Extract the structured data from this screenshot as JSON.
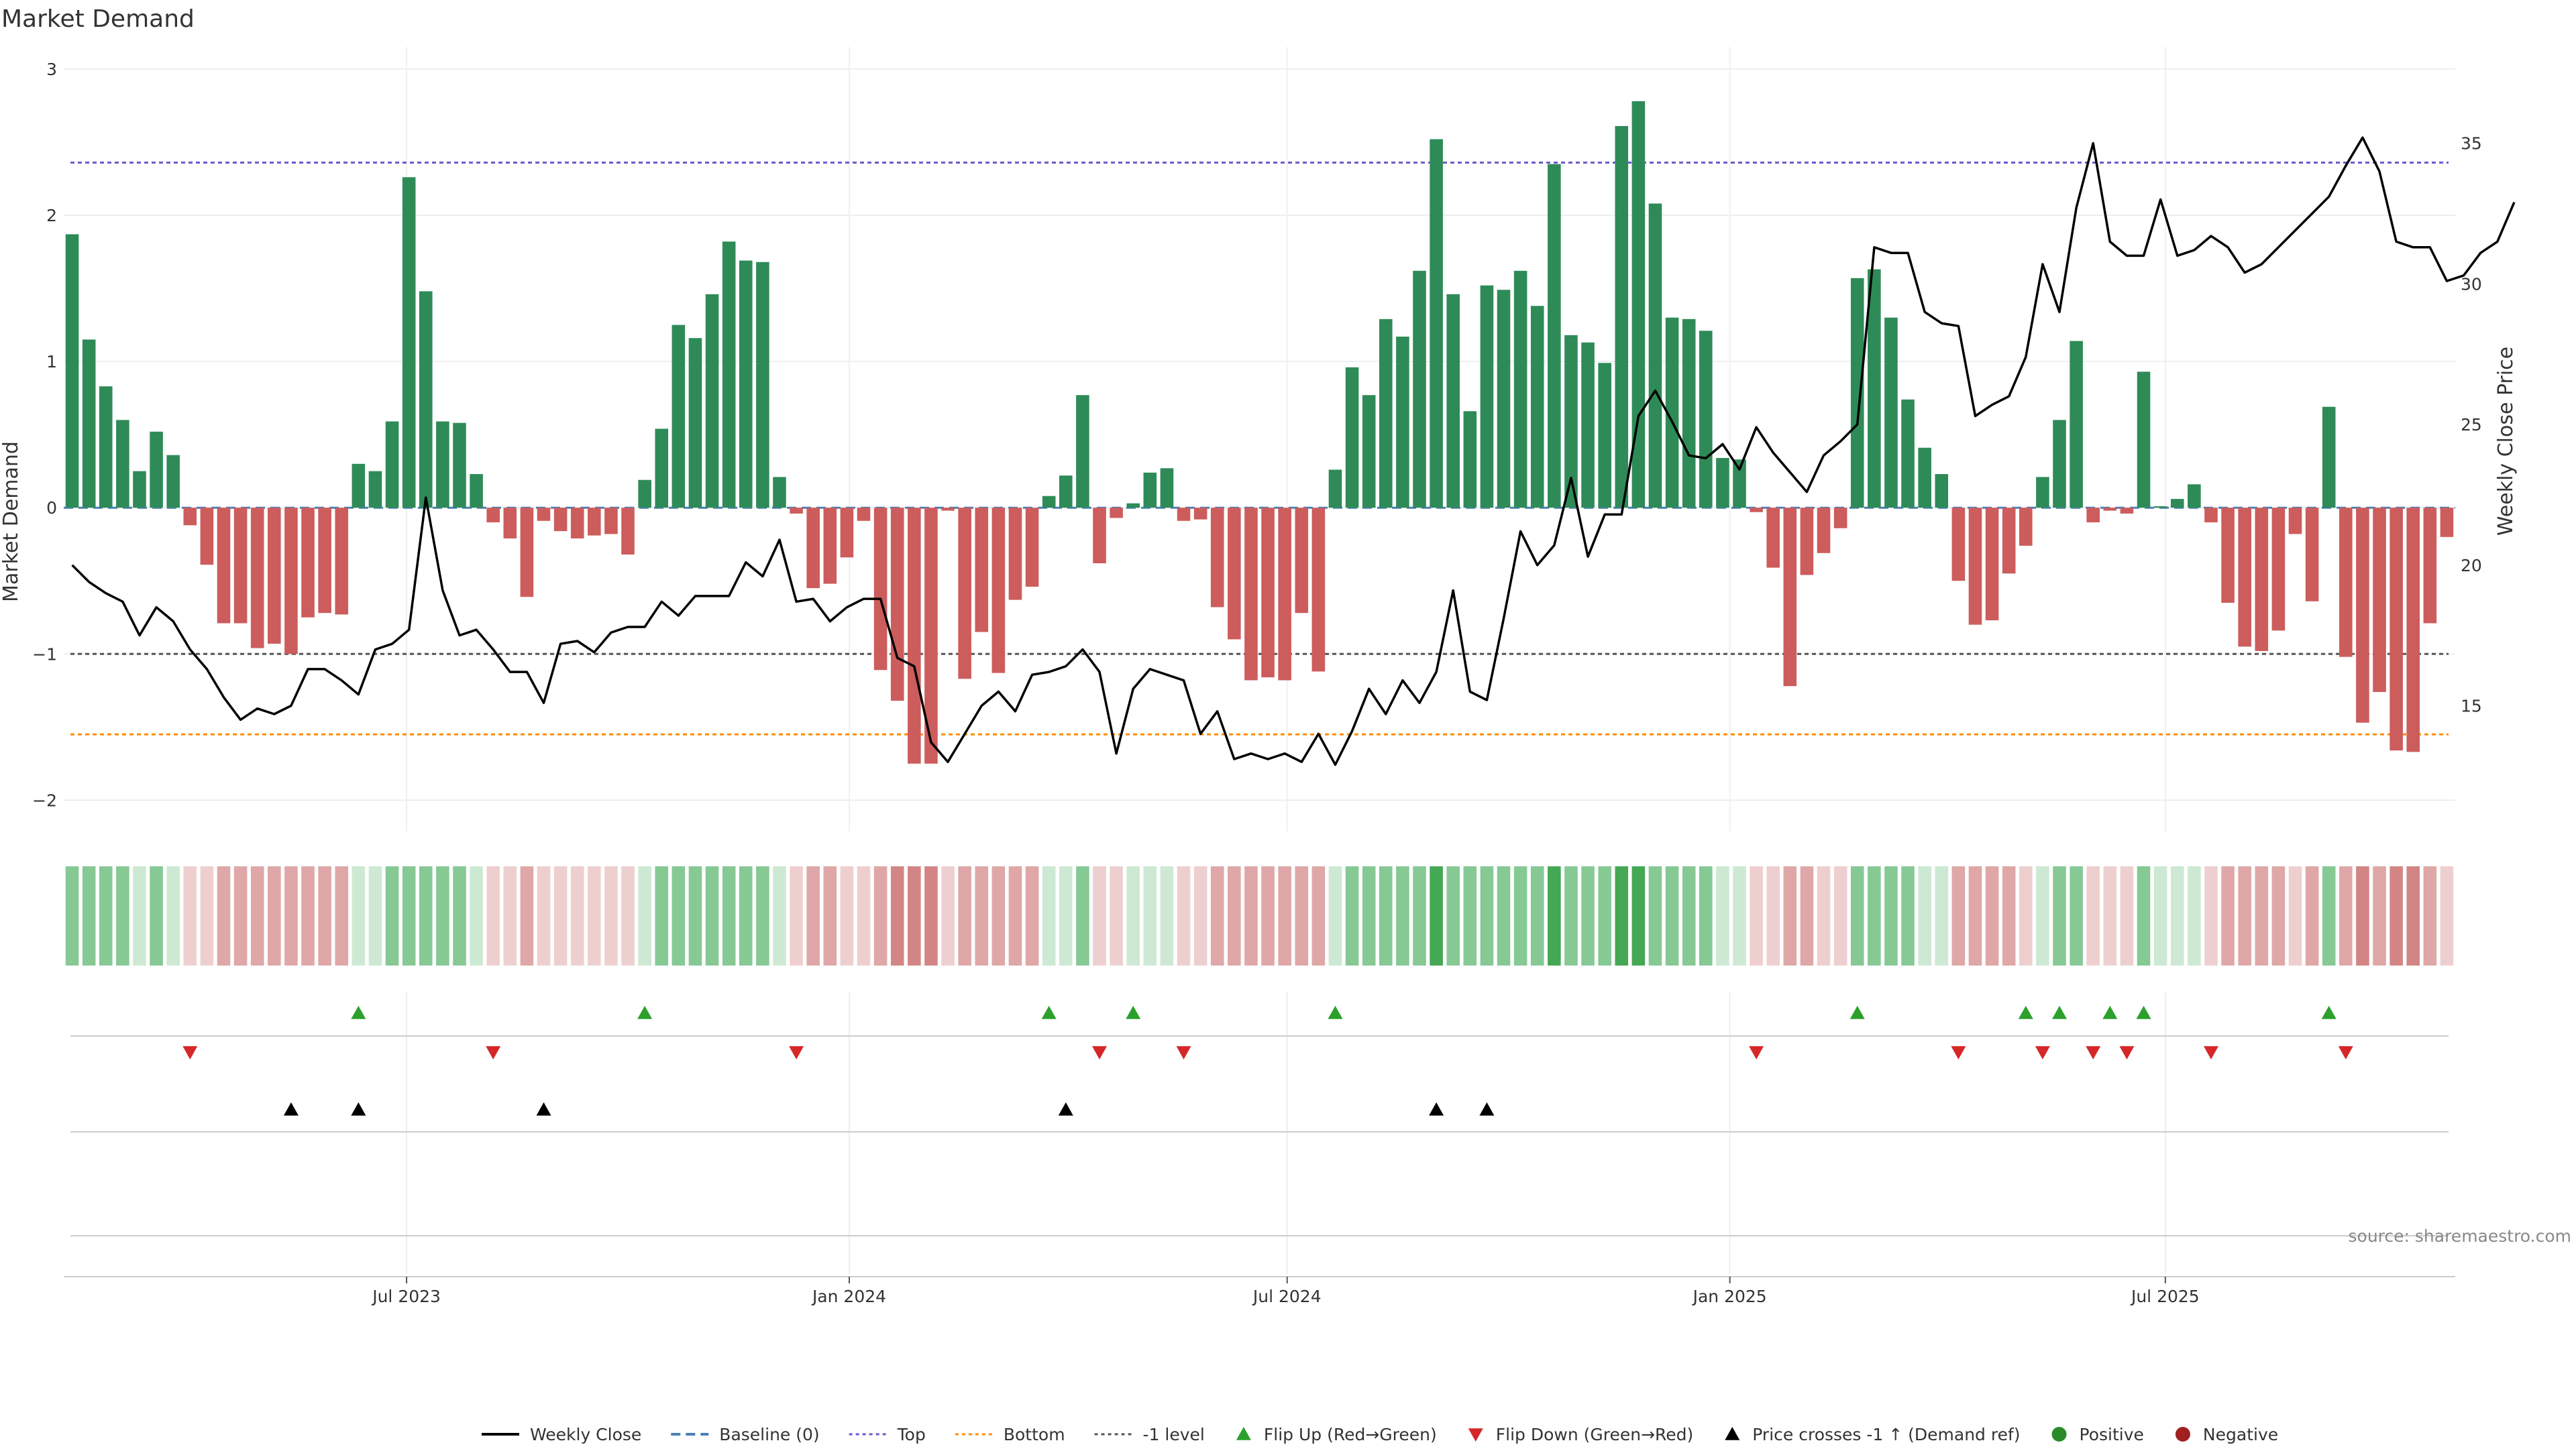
{
  "chart_data": {
    "type": "bar",
    "title": "Market Demand",
    "ylabel_left": "Market Demand",
    "ylabel_right": "Weekly Close Price",
    "ylim_left": [
      -2.2,
      3.05
    ],
    "ylim_right": [
      10.6,
      37.9
    ],
    "yticks_left": [
      -2,
      -1,
      0,
      1,
      2,
      3
    ],
    "yticks_left_labels": [
      "−2",
      "−1",
      "0",
      "1",
      "2",
      "3"
    ],
    "yticks_right": [
      15,
      20,
      25,
      30,
      35
    ],
    "xticks": [
      {
        "date": "2023-07-01",
        "label": "Jul 2023"
      },
      {
        "date": "2024-01-01",
        "label": "Jan 2024"
      },
      {
        "date": "2024-07-01",
        "label": "Jul 2024"
      },
      {
        "date": "2025-01-01",
        "label": "Jan 2025"
      },
      {
        "date": "2025-07-01",
        "label": "Jul 2025"
      }
    ],
    "x_start": "2023-02-12",
    "week_step_days": 7,
    "reference_lines": {
      "top": 2.36,
      "bottom": -1.55,
      "minus_one": -1,
      "baseline": 0
    },
    "demand": [
      1.87,
      1.15,
      0.83,
      0.6,
      0.25,
      0.52,
      0.36,
      -0.12,
      -0.39,
      -0.79,
      -0.79,
      -0.96,
      -0.93,
      -1.0,
      -0.75,
      -0.72,
      -0.73,
      0.3,
      0.25,
      0.59,
      2.26,
      1.48,
      0.59,
      0.58,
      0.23,
      -0.1,
      -0.21,
      -0.61,
      -0.09,
      -0.16,
      -0.21,
      -0.19,
      -0.18,
      -0.32,
      0.19,
      0.54,
      1.25,
      1.16,
      1.46,
      1.82,
      1.69,
      1.68,
      0.21,
      -0.04,
      -0.55,
      -0.52,
      -0.34,
      -0.09,
      -1.11,
      -1.32,
      -1.75,
      -1.75,
      -0.02,
      -1.17,
      -0.85,
      -1.13,
      -0.63,
      -0.54,
      0.08,
      0.22,
      0.77,
      -0.38,
      -0.07,
      0.03,
      0.24,
      0.27,
      -0.09,
      -0.08,
      -0.68,
      -0.9,
      -1.18,
      -1.16,
      -1.18,
      -0.72,
      -1.12,
      0.26,
      0.96,
      0.77,
      1.29,
      1.17,
      1.62,
      2.52,
      1.46,
      0.66,
      1.52,
      1.49,
      1.62,
      1.38,
      2.35,
      1.18,
      1.13,
      0.99,
      2.61,
      2.78,
      2.08,
      1.3,
      1.29,
      1.21,
      0.34,
      0.33,
      -0.03,
      -0.41,
      -1.22,
      -0.46,
      -0.31,
      -0.14,
      1.57,
      1.63,
      1.3,
      0.74,
      0.41,
      0.23,
      -0.5,
      -0.8,
      -0.77,
      -0.45,
      -0.26,
      0.21,
      0.6,
      1.14,
      -0.1,
      -0.02,
      -0.04,
      0.93,
      0.01,
      0.06,
      0.16,
      -0.1,
      -0.65,
      -0.95,
      -0.98,
      -0.84,
      -0.18,
      -0.64,
      0.69,
      -1.02,
      -1.47,
      -1.26,
      -1.66,
      -1.67,
      -0.79,
      -0.2
    ],
    "weekly_close": [
      20.0,
      19.4,
      19.0,
      18.7,
      17.5,
      18.5,
      18.0,
      17.0,
      16.3,
      15.3,
      14.5,
      14.9,
      14.7,
      15.0,
      16.3,
      16.3,
      15.9,
      15.4,
      17.0,
      17.2,
      17.7,
      22.4,
      19.1,
      17.5,
      17.7,
      17.0,
      16.2,
      16.2,
      15.1,
      17.2,
      17.3,
      16.9,
      17.6,
      17.8,
      17.8,
      18.7,
      18.2,
      18.9,
      18.9,
      18.9,
      20.1,
      19.6,
      20.9,
      18.7,
      18.8,
      18.0,
      18.5,
      18.8,
      18.8,
      16.7,
      16.4,
      13.7,
      13.0,
      14.0,
      15.0,
      15.5,
      14.8,
      16.1,
      16.2,
      16.4,
      17.0,
      16.2,
      13.3,
      15.6,
      16.3,
      16.1,
      15.9,
      14.0,
      14.8,
      13.1,
      13.3,
      13.1,
      13.3,
      13.0,
      14.0,
      12.9,
      14.1,
      15.6,
      14.7,
      15.9,
      15.1,
      16.2,
      19.1,
      15.5,
      15.2,
      18.1,
      21.2,
      20.0,
      20.7,
      23.1,
      20.3,
      21.8,
      21.8,
      25.3,
      26.2,
      25.1,
      23.9,
      23.8,
      24.3,
      23.4,
      24.9,
      24.0,
      23.3,
      22.6,
      23.9,
      24.4,
      25.0,
      31.3,
      31.1,
      31.1,
      29.0,
      28.6,
      28.5,
      25.3,
      25.7,
      26.0,
      27.4,
      30.7,
      29.0,
      32.7,
      35.0,
      31.5,
      31.0,
      31.0,
      33.0,
      31.0,
      31.2,
      31.7,
      31.3,
      30.4,
      30.7,
      31.3,
      31.9,
      32.5,
      33.1,
      34.2,
      35.2,
      34.0,
      31.5,
      31.3,
      31.3,
      30.1,
      30.3,
      31.1,
      31.5,
      32.9
    ],
    "strength_strip_colors": [
      {
        "name": "strong-positive",
        "hex": "#44a854"
      },
      {
        "name": "positive",
        "hex": "#86c995"
      },
      {
        "name": "weak-positive",
        "hex": "#cde9d3"
      },
      {
        "name": "weak-negative",
        "hex": "#eecfcf"
      },
      {
        "name": "negative",
        "hex": "#dfa7a7"
      },
      {
        "name": "strong-negative",
        "hex": "#d38585"
      }
    ],
    "flip_up_weeks": [
      17,
      34,
      58,
      63,
      75,
      106,
      116,
      118,
      121,
      123,
      134
    ],
    "flip_down_weeks": [
      7,
      25,
      43,
      61,
      66,
      100,
      112,
      117,
      120,
      122,
      127,
      135
    ],
    "price_cross_weeks": [
      13,
      17,
      28,
      59,
      81,
      84
    ],
    "colors": {
      "positive_bar": "#2e8b57",
      "negative_bar": "#cd5c5c",
      "weekly_close": "#000000",
      "baseline": "#4a7fb5",
      "top": "#6a5acd",
      "bottom": "#ff8c00",
      "minus_one": "#555555",
      "flip_up": "#2ca02c",
      "flip_down": "#d62728",
      "price_cross": "#000000",
      "positive_dot": "#2a8a2a",
      "negative_dot": "#a02020"
    },
    "legend": {
      "placement": "bottom-center",
      "entries": [
        {
          "key": "weekly_close",
          "label": "Weekly Close",
          "style": "line"
        },
        {
          "key": "baseline",
          "label": "Baseline (0)",
          "style": "dashed"
        },
        {
          "key": "top",
          "label": "Top",
          "style": "dotted"
        },
        {
          "key": "bottom",
          "label": "Bottom",
          "style": "dotted"
        },
        {
          "key": "minus_one",
          "label": "-1 level",
          "style": "dotted"
        },
        {
          "key": "flip_up",
          "label": "Flip Up (Red→Green)",
          "style": "triangle-up"
        },
        {
          "key": "flip_down",
          "label": "Flip Down (Green→Red)",
          "style": "triangle-down"
        },
        {
          "key": "price_cross",
          "label": "Price crosses -1 ↑ (Demand ref)",
          "style": "triangle-up"
        },
        {
          "key": "positive_dot",
          "label": "Positive",
          "style": "dot"
        },
        {
          "key": "negative_dot",
          "label": "Negative",
          "style": "dot"
        }
      ]
    },
    "grid": true,
    "source": "source: sharemaestro.com"
  }
}
